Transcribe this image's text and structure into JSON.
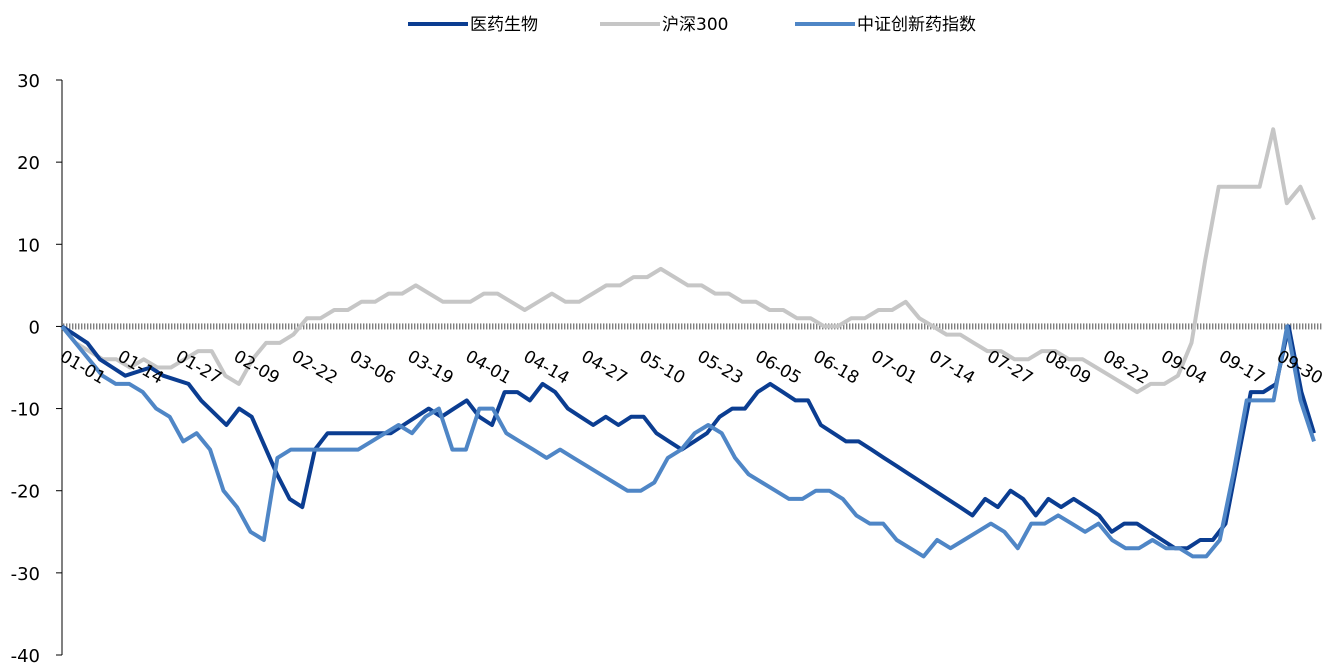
{
  "chart_data": {
    "type": "line",
    "title": "",
    "xlabel": "",
    "ylabel": "",
    "ylim": [
      -40,
      30
    ],
    "yticks": [
      30,
      20,
      10,
      0,
      -10,
      -20,
      -30,
      -40
    ],
    "x_tick_labels": [
      "01-01",
      "01-14",
      "01-27",
      "02-09",
      "02-22",
      "03-06",
      "03-19",
      "04-01",
      "04-14",
      "04-27",
      "05-10",
      "05-23",
      "06-05",
      "06-18",
      "07-01",
      "07-14",
      "07-27",
      "08-09",
      "08-22",
      "09-04",
      "09-17",
      "09-30"
    ],
    "legend_position": "top-center",
    "grid": false,
    "zero_line_style": "hatched",
    "series": [
      {
        "name": "医药生物",
        "color": "#0b3d91",
        "points": [
          [
            0,
            0
          ],
          [
            1,
            -1
          ],
          [
            2,
            -2
          ],
          [
            3,
            -4
          ],
          [
            4,
            -5
          ],
          [
            5,
            -6
          ],
          [
            7,
            -5
          ],
          [
            8,
            -6
          ],
          [
            10,
            -7
          ],
          [
            11,
            -9
          ],
          [
            13,
            -12
          ],
          [
            14,
            -10
          ],
          [
            15,
            -11
          ],
          [
            17,
            -18
          ],
          [
            18,
            -21
          ],
          [
            19,
            -22
          ],
          [
            20,
            -15
          ],
          [
            21,
            -13
          ],
          [
            26,
            -13
          ],
          [
            27,
            -12
          ],
          [
            28,
            -11
          ],
          [
            29,
            -10
          ],
          [
            30,
            -11
          ],
          [
            31,
            -10
          ],
          [
            32,
            -9
          ],
          [
            33,
            -11
          ],
          [
            34,
            -12
          ],
          [
            35,
            -8
          ],
          [
            36,
            -8
          ],
          [
            37,
            -9
          ],
          [
            38,
            -7
          ],
          [
            39,
            -8
          ],
          [
            40,
            -10
          ],
          [
            41,
            -11
          ],
          [
            42,
            -12
          ],
          [
            43,
            -11
          ],
          [
            44,
            -12
          ],
          [
            45,
            -11
          ],
          [
            46,
            -11
          ],
          [
            47,
            -13
          ],
          [
            48,
            -14
          ],
          [
            49,
            -15
          ],
          [
            50,
            -14
          ],
          [
            51,
            -13
          ],
          [
            52,
            -11
          ],
          [
            53,
            -10
          ],
          [
            54,
            -10
          ],
          [
            55,
            -8
          ],
          [
            56,
            -7
          ],
          [
            57,
            -8
          ],
          [
            58,
            -9
          ],
          [
            59,
            -9
          ],
          [
            60,
            -12
          ],
          [
            61,
            -13
          ],
          [
            62,
            -14
          ],
          [
            63,
            -14
          ],
          [
            64,
            -15
          ],
          [
            65,
            -16
          ],
          [
            66,
            -17
          ],
          [
            67,
            -18
          ],
          [
            68,
            -19
          ],
          [
            69,
            -20
          ],
          [
            70,
            -21
          ],
          [
            71,
            -22
          ],
          [
            72,
            -23
          ],
          [
            73,
            -21
          ],
          [
            74,
            -22
          ],
          [
            75,
            -20
          ],
          [
            76,
            -21
          ],
          [
            77,
            -23
          ],
          [
            78,
            -21
          ],
          [
            79,
            -22
          ],
          [
            80,
            -21
          ],
          [
            81,
            -22
          ],
          [
            82,
            -23
          ],
          [
            83,
            -25
          ],
          [
            84,
            -24
          ],
          [
            85,
            -24
          ],
          [
            86,
            -25
          ],
          [
            87,
            -26
          ],
          [
            88,
            -27
          ],
          [
            89,
            -27
          ],
          [
            90,
            -26
          ],
          [
            91,
            -26
          ],
          [
            92,
            -24
          ],
          [
            93,
            -16
          ],
          [
            94,
            -8
          ],
          [
            95,
            -8
          ],
          [
            96,
            -7
          ],
          [
            97,
            0
          ],
          [
            98,
            -8
          ],
          [
            99,
            -13
          ]
        ]
      },
      {
        "name": "沪深300",
        "color": "#c6c6c6",
        "points": [
          [
            0,
            0
          ],
          [
            1,
            -2
          ],
          [
            2,
            -3
          ],
          [
            3,
            -4
          ],
          [
            4,
            -4
          ],
          [
            5,
            -5
          ],
          [
            6,
            -4
          ],
          [
            7,
            -5
          ],
          [
            8,
            -5
          ],
          [
            9,
            -4
          ],
          [
            10,
            -3
          ],
          [
            11,
            -3
          ],
          [
            12,
            -6
          ],
          [
            13,
            -7
          ],
          [
            14,
            -4
          ],
          [
            15,
            -2
          ],
          [
            16,
            -2
          ],
          [
            17,
            -1
          ],
          [
            18,
            1
          ],
          [
            19,
            1
          ],
          [
            20,
            2
          ],
          [
            21,
            2
          ],
          [
            22,
            3
          ],
          [
            23,
            3
          ],
          [
            24,
            4
          ],
          [
            25,
            4
          ],
          [
            26,
            5
          ],
          [
            27,
            4
          ],
          [
            28,
            3
          ],
          [
            29,
            3
          ],
          [
            30,
            3
          ],
          [
            31,
            4
          ],
          [
            32,
            4
          ],
          [
            33,
            3
          ],
          [
            34,
            2
          ],
          [
            35,
            3
          ],
          [
            36,
            4
          ],
          [
            37,
            3
          ],
          [
            38,
            3
          ],
          [
            39,
            4
          ],
          [
            40,
            5
          ],
          [
            41,
            5
          ],
          [
            42,
            6
          ],
          [
            43,
            6
          ],
          [
            44,
            7
          ],
          [
            45,
            6
          ],
          [
            46,
            5
          ],
          [
            47,
            5
          ],
          [
            48,
            4
          ],
          [
            49,
            4
          ],
          [
            50,
            3
          ],
          [
            51,
            3
          ],
          [
            52,
            2
          ],
          [
            53,
            2
          ],
          [
            54,
            1
          ],
          [
            55,
            1
          ],
          [
            56,
            0
          ],
          [
            57,
            0
          ],
          [
            58,
            1
          ],
          [
            59,
            1
          ],
          [
            60,
            2
          ],
          [
            61,
            2
          ],
          [
            62,
            3
          ],
          [
            63,
            1
          ],
          [
            64,
            0
          ],
          [
            65,
            -1
          ],
          [
            66,
            -1
          ],
          [
            67,
            -2
          ],
          [
            68,
            -3
          ],
          [
            69,
            -3
          ],
          [
            70,
            -4
          ],
          [
            71,
            -4
          ],
          [
            72,
            -3
          ],
          [
            73,
            -3
          ],
          [
            74,
            -4
          ],
          [
            75,
            -4
          ],
          [
            76,
            -5
          ],
          [
            77,
            -6
          ],
          [
            78,
            -7
          ],
          [
            79,
            -8
          ],
          [
            80,
            -7
          ],
          [
            81,
            -7
          ],
          [
            82,
            -6
          ],
          [
            83,
            -2
          ],
          [
            84,
            8
          ],
          [
            85,
            17
          ],
          [
            86,
            17
          ],
          [
            87,
            17
          ],
          [
            88,
            17
          ],
          [
            89,
            24
          ],
          [
            90,
            15
          ],
          [
            91,
            17
          ],
          [
            92,
            13
          ]
        ]
      },
      {
        "name": "中证创新药指数",
        "color": "#4f86c6",
        "points": [
          [
            0,
            0
          ],
          [
            1,
            -2
          ],
          [
            2,
            -4
          ],
          [
            3,
            -6
          ],
          [
            4,
            -7
          ],
          [
            5,
            -7
          ],
          [
            6,
            -8
          ],
          [
            7,
            -10
          ],
          [
            8,
            -11
          ],
          [
            9,
            -14
          ],
          [
            10,
            -13
          ],
          [
            11,
            -15
          ],
          [
            12,
            -20
          ],
          [
            13,
            -22
          ],
          [
            14,
            -25
          ],
          [
            15,
            -26
          ],
          [
            16,
            -16
          ],
          [
            17,
            -15
          ],
          [
            22,
            -15
          ],
          [
            23,
            -14
          ],
          [
            24,
            -13
          ],
          [
            25,
            -12
          ],
          [
            26,
            -13
          ],
          [
            27,
            -11
          ],
          [
            28,
            -10
          ],
          [
            29,
            -15
          ],
          [
            30,
            -15
          ],
          [
            31,
            -10
          ],
          [
            32,
            -10
          ],
          [
            33,
            -13
          ],
          [
            34,
            -14
          ],
          [
            35,
            -15
          ],
          [
            36,
            -16
          ],
          [
            37,
            -15
          ],
          [
            38,
            -16
          ],
          [
            39,
            -17
          ],
          [
            40,
            -18
          ],
          [
            41,
            -19
          ],
          [
            42,
            -20
          ],
          [
            43,
            -20
          ],
          [
            44,
            -19
          ],
          [
            45,
            -16
          ],
          [
            46,
            -15
          ],
          [
            47,
            -13
          ],
          [
            48,
            -12
          ],
          [
            49,
            -13
          ],
          [
            50,
            -16
          ],
          [
            51,
            -18
          ],
          [
            52,
            -19
          ],
          [
            53,
            -20
          ],
          [
            54,
            -21
          ],
          [
            55,
            -21
          ],
          [
            56,
            -20
          ],
          [
            57,
            -20
          ],
          [
            58,
            -21
          ],
          [
            59,
            -23
          ],
          [
            60,
            -24
          ],
          [
            61,
            -24
          ],
          [
            62,
            -26
          ],
          [
            63,
            -27
          ],
          [
            64,
            -28
          ],
          [
            65,
            -26
          ],
          [
            66,
            -27
          ],
          [
            67,
            -26
          ],
          [
            68,
            -25
          ],
          [
            69,
            -24
          ],
          [
            70,
            -25
          ],
          [
            71,
            -27
          ],
          [
            72,
            -24
          ],
          [
            73,
            -24
          ],
          [
            74,
            -23
          ],
          [
            75,
            -24
          ],
          [
            76,
            -25
          ],
          [
            77,
            -24
          ],
          [
            78,
            -26
          ],
          [
            79,
            -27
          ],
          [
            80,
            -27
          ],
          [
            81,
            -26
          ],
          [
            82,
            -27
          ],
          [
            83,
            -27
          ],
          [
            84,
            -28
          ],
          [
            85,
            -28
          ],
          [
            86,
            -26
          ],
          [
            87,
            -18
          ],
          [
            88,
            -9
          ],
          [
            89,
            -9
          ],
          [
            90,
            -9
          ],
          [
            91,
            0
          ],
          [
            92,
            -9
          ],
          [
            93,
            -14
          ]
        ]
      }
    ]
  }
}
